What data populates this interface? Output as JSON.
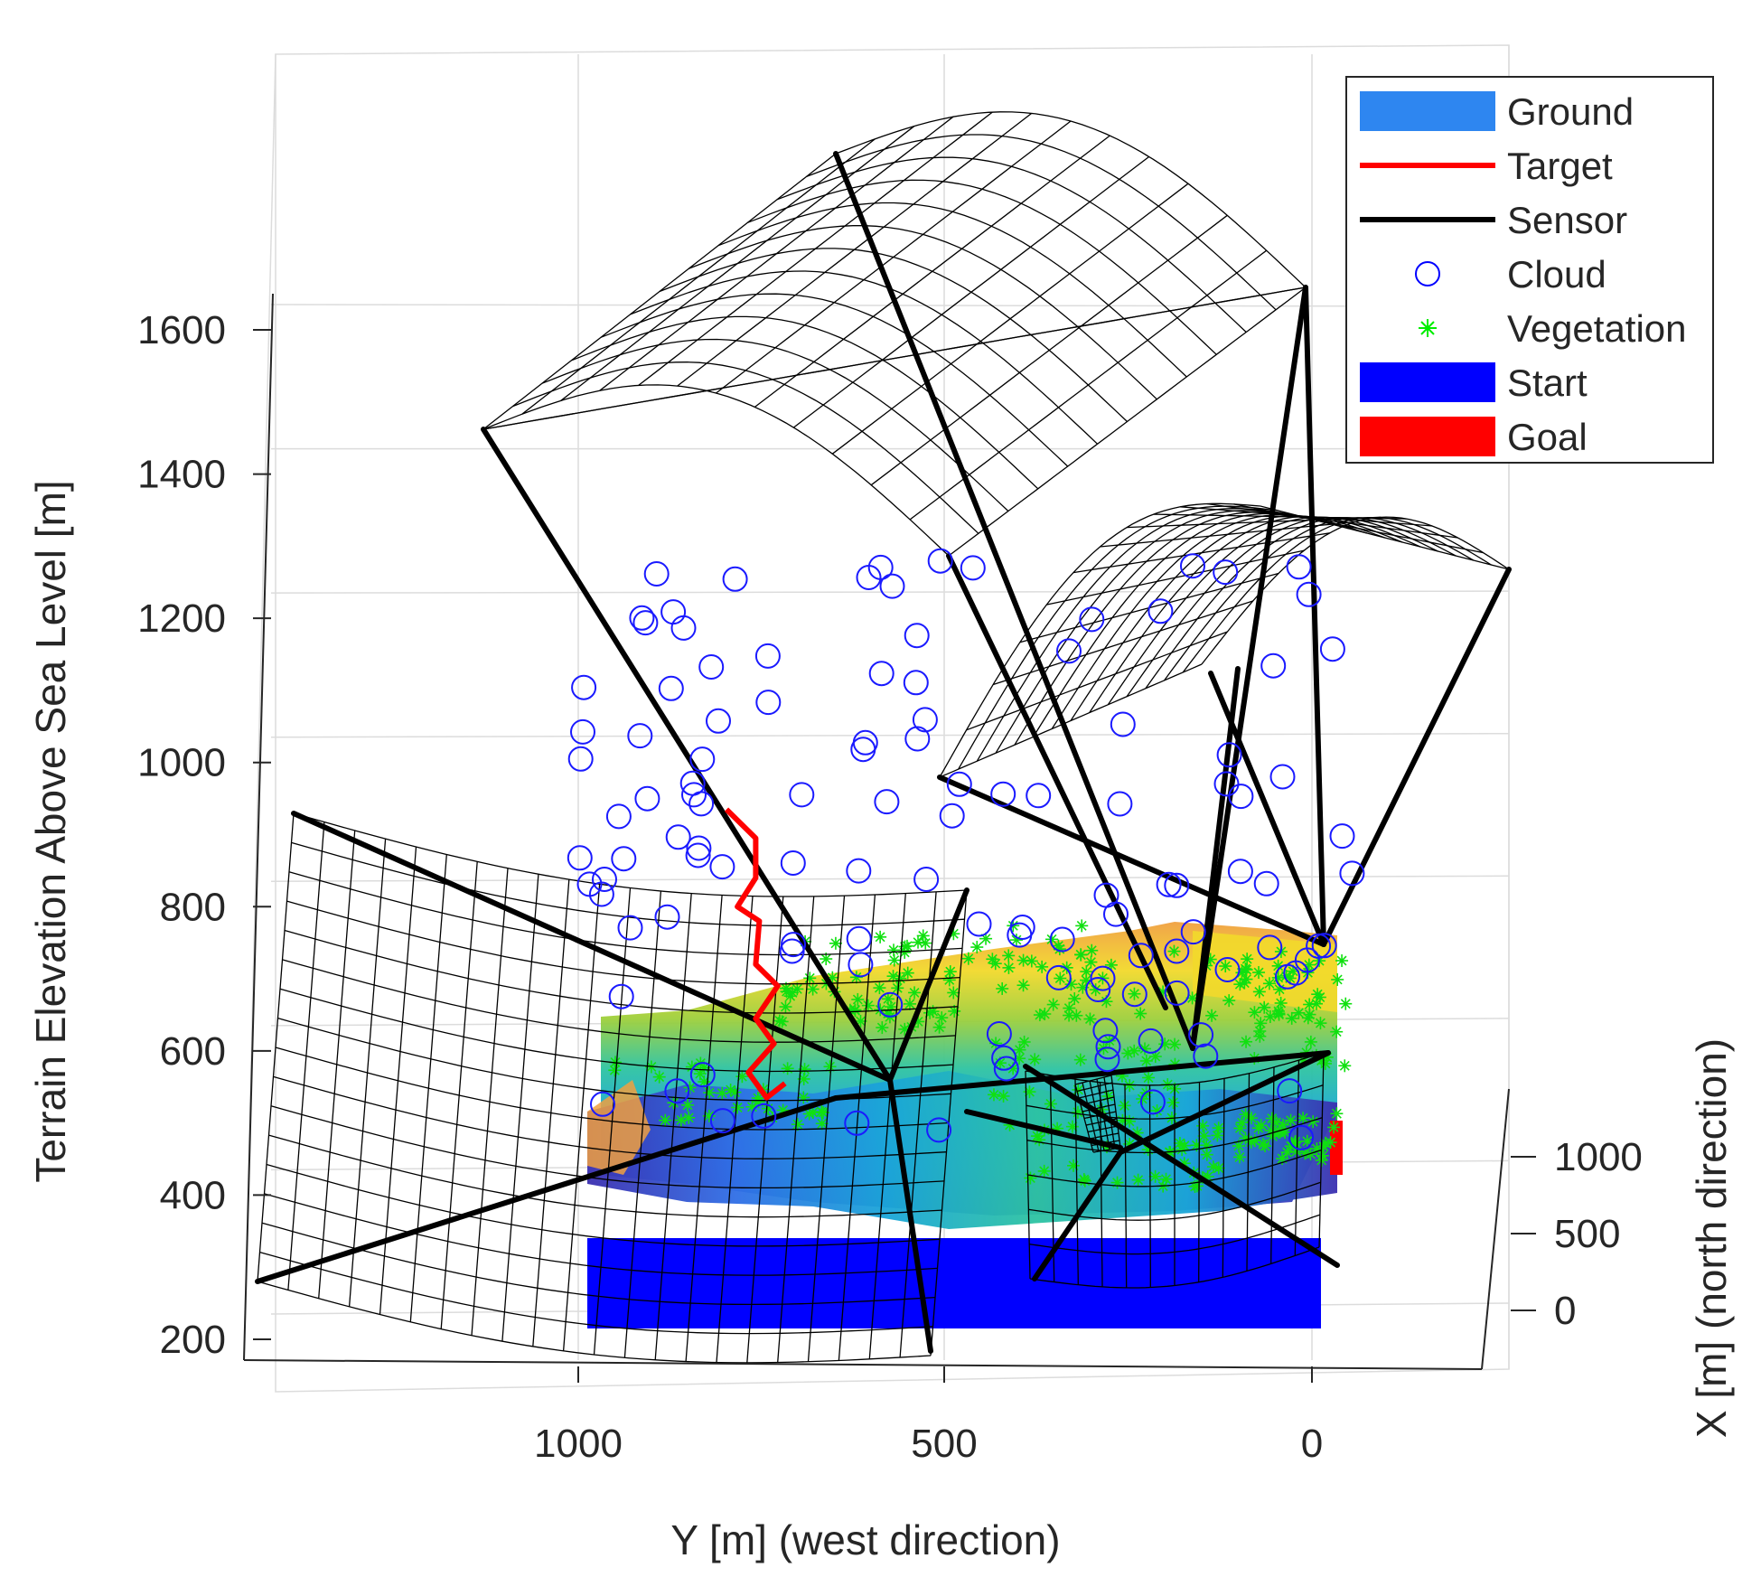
{
  "chart_data": {
    "type": "3d-scatter-surface",
    "title": "",
    "zlabel": "Terrain Elevation Above Sea Level [m]",
    "ylabel": "Y [m] (west direction)",
    "xlabel": "X [m] (north direction)",
    "z_ticks": [
      200,
      400,
      600,
      800,
      1000,
      1200,
      1400,
      1600
    ],
    "y_ticks": [
      1000,
      500,
      0
    ],
    "x_ticks": [
      1000,
      500,
      0
    ],
    "zlim": [
      200,
      1700
    ],
    "ylim": [
      0,
      1000
    ],
    "xlim": [
      0,
      1000
    ],
    "grid": true,
    "legend_position": "top-right",
    "legend": [
      {
        "label": "Ground",
        "color": "#2e86f0",
        "style": "patch"
      },
      {
        "label": "Target",
        "color": "#ff0000",
        "style": "line"
      },
      {
        "label": "Sensor",
        "color": "#000000",
        "style": "line"
      },
      {
        "label": "Cloud",
        "color": "#0000ff",
        "style": "circle"
      },
      {
        "label": "Vegetation",
        "color": "#00ee00",
        "style": "asterisk"
      },
      {
        "label": "Start",
        "color": "#0000ff",
        "style": "patch"
      },
      {
        "label": "Goal",
        "color": "#ff0000",
        "style": "patch"
      }
    ],
    "ground_colormap": [
      "#3b2fb0",
      "#2f6fe6",
      "#1aa6d8",
      "#2dc3a1",
      "#9ccf3c",
      "#f2d92b",
      "#f0a040"
    ],
    "target_path": [
      {
        "y": 800,
        "z": 935
      },
      {
        "y": 760,
        "z": 895
      },
      {
        "y": 760,
        "z": 840
      },
      {
        "y": 785,
        "z": 800
      },
      {
        "y": 755,
        "z": 780
      },
      {
        "y": 760,
        "z": 720
      },
      {
        "y": 730,
        "z": 690
      },
      {
        "y": 760,
        "z": 645
      },
      {
        "y": 735,
        "z": 610
      },
      {
        "y": 770,
        "z": 570
      },
      {
        "y": 745,
        "z": 535
      },
      {
        "y": 720,
        "z": 555
      }
    ]
  }
}
